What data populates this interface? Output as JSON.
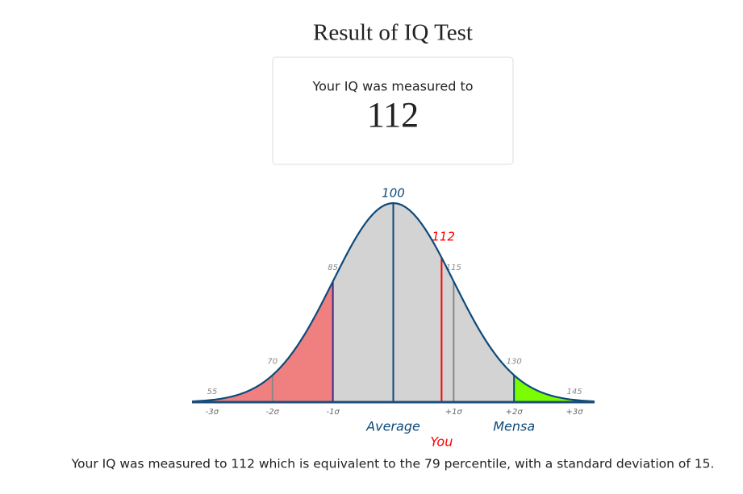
{
  "header": {
    "title": "Result of IQ Test"
  },
  "card": {
    "label": "Your IQ was measured to",
    "value": 112
  },
  "chart_data": {
    "type": "normal",
    "mean": 100,
    "sd": 15,
    "mean_label": "Average",
    "mean_color": "#0d4a7a",
    "xlim": [
      50,
      150
    ],
    "xticks": [
      {
        "value": 55,
        "label": "-3σ",
        "color": "#888888"
      },
      {
        "value": 70,
        "label": "-2σ",
        "color": "#888888"
      },
      {
        "value": 85,
        "label": "-1σ",
        "color": "#3b2d8a"
      },
      {
        "value": 115,
        "label": "+1σ",
        "color": "#888888"
      },
      {
        "value": 130,
        "label": "+2σ",
        "color": "#0d4a7a"
      },
      {
        "value": 145,
        "label": "+3σ",
        "color": "#888888"
      }
    ],
    "regions": [
      {
        "from": 50,
        "to": 85,
        "color": "#f08080"
      },
      {
        "from": 85,
        "to": 130,
        "color": "#d3d3d3"
      },
      {
        "from": 130,
        "to": 150,
        "color": "#7cfc00"
      }
    ],
    "annotations": [
      {
        "value": 130,
        "text": "Mensa"
      }
    ],
    "score": {
      "value": 112,
      "label": "You",
      "color": "#ff0000"
    }
  },
  "summary": "Your IQ was measured to 112 which is equivalent to the 79 percentile, with a standard deviation of 15."
}
